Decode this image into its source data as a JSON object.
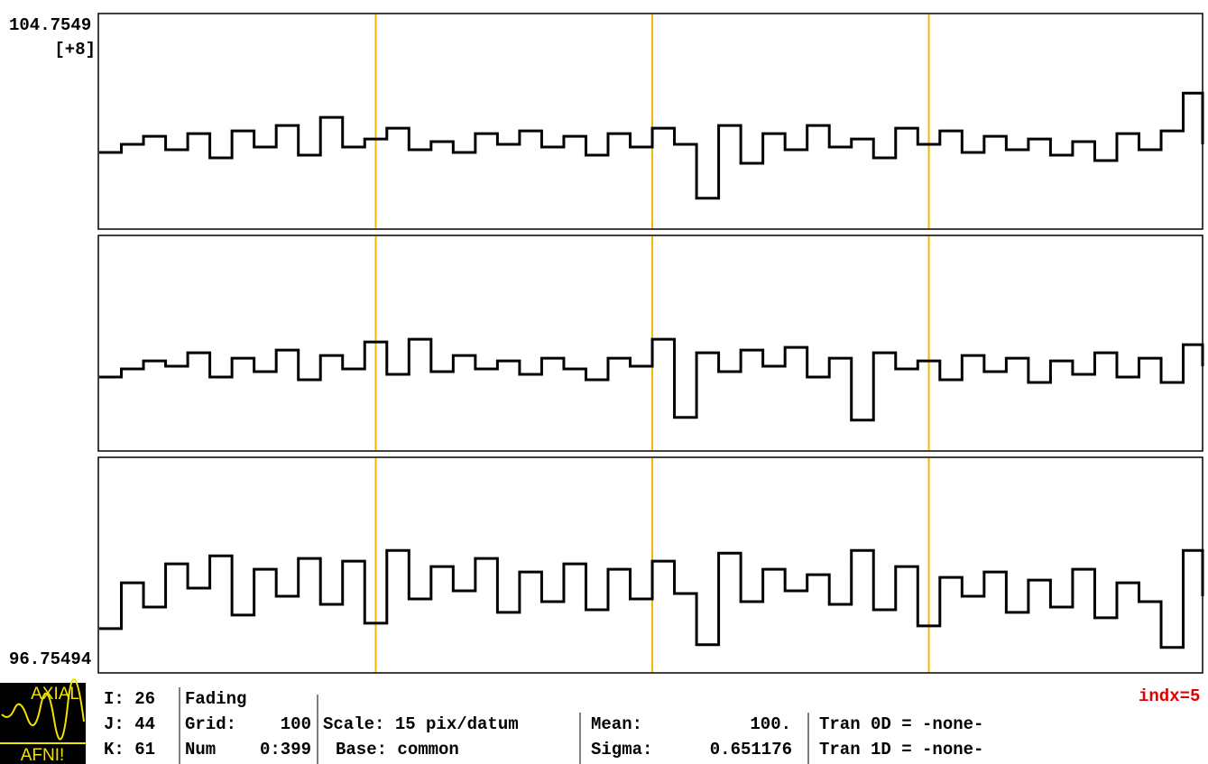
{
  "graph": {
    "top_label": "104.7549",
    "scale_label": "[+8]",
    "bottom_label": "96.75494",
    "ylim": [
      96.75494,
      104.7549
    ],
    "xlim": [
      0,
      399
    ],
    "grid_lines": [
      100,
      200,
      300
    ],
    "x": [
      0,
      8,
      16,
      24,
      32,
      40,
      48,
      56,
      64,
      72,
      80,
      88,
      96,
      104,
      112,
      120,
      128,
      136,
      144,
      152,
      160,
      168,
      176,
      184,
      192,
      200,
      208,
      216,
      224,
      232,
      240,
      248,
      256,
      264,
      272,
      280,
      288,
      296,
      304,
      312,
      320,
      328,
      336,
      344,
      352,
      360,
      368,
      376,
      384,
      392,
      399
    ],
    "traces": [
      {
        "values": [
          99.6,
          99.9,
          100.2,
          99.7,
          100.3,
          99.4,
          100.4,
          99.8,
          100.6,
          99.5,
          100.9,
          99.8,
          100.1,
          100.5,
          99.7,
          100.0,
          99.6,
          100.3,
          99.9,
          100.4,
          99.8,
          100.2,
          99.5,
          100.3,
          99.8,
          100.5,
          99.9,
          97.9,
          100.6,
          99.2,
          100.3,
          99.7,
          100.6,
          99.8,
          100.1,
          99.4,
          100.5,
          99.9,
          100.4,
          99.6,
          100.2,
          99.7,
          100.1,
          99.5,
          100.0,
          99.3,
          100.3,
          99.7,
          100.4,
          101.8,
          99.9
        ]
      },
      {
        "values": [
          99.5,
          99.8,
          100.1,
          99.9,
          100.4,
          99.5,
          100.2,
          99.7,
          100.5,
          99.4,
          100.3,
          99.8,
          100.8,
          99.6,
          100.9,
          99.7,
          100.3,
          99.8,
          100.1,
          99.6,
          100.2,
          99.8,
          99.4,
          100.2,
          99.9,
          100.9,
          98.0,
          100.4,
          99.7,
          100.5,
          99.9,
          100.6,
          99.5,
          100.2,
          97.9,
          100.4,
          99.8,
          100.1,
          99.4,
          100.3,
          99.7,
          100.2,
          99.3,
          100.1,
          99.6,
          100.4,
          99.5,
          100.2,
          99.3,
          100.7,
          99.9
        ]
      },
      {
        "values": [
          98.4,
          100.1,
          99.2,
          100.8,
          99.9,
          101.1,
          98.9,
          100.6,
          99.6,
          101.0,
          99.3,
          100.9,
          98.6,
          101.3,
          99.5,
          100.7,
          99.8,
          101.0,
          99.0,
          100.5,
          99.4,
          100.8,
          99.1,
          100.6,
          99.5,
          100.9,
          99.7,
          97.8,
          101.2,
          99.4,
          100.6,
          99.8,
          100.4,
          99.3,
          101.3,
          99.1,
          100.7,
          98.5,
          100.3,
          99.6,
          100.5,
          99.0,
          100.2,
          99.2,
          100.6,
          98.8,
          100.1,
          99.4,
          97.7,
          101.3,
          99.6
        ]
      }
    ]
  },
  "coords": {
    "i": "I: 26",
    "j": "J: 44",
    "k": "K: 61"
  },
  "status": {
    "fading": "Fading",
    "grid_label": "Grid:",
    "grid_value": "100",
    "num_label": "Num",
    "num_value": "0:399",
    "scale": "Scale: 15 pix/datum",
    "base": "Base: common",
    "mean_label": "Mean:",
    "mean_value": "100.",
    "sigma_label": "Sigma:",
    "sigma_value": "0.651176",
    "tran_0d": "Tran 0D = -none-",
    "tran_1d": "Tran 1D = -none-",
    "index": "indx=5"
  },
  "logo": {
    "view": "AXIAL",
    "name": "AFNI!"
  }
}
